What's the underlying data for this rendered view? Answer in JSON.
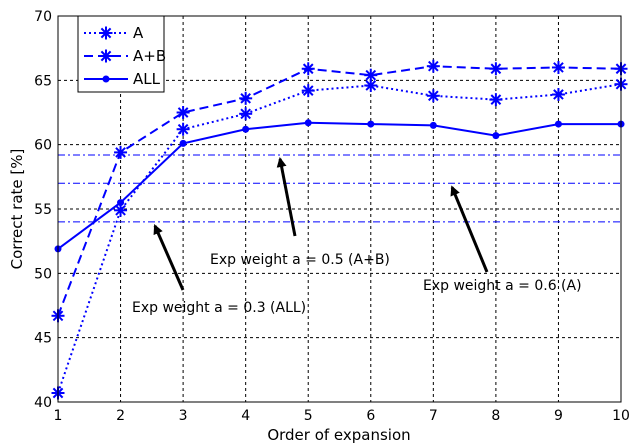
{
  "chart_data": {
    "type": "line",
    "title": "",
    "xlabel": "Order of expansion",
    "ylabel": "Correct rate [%]",
    "xlim": [
      1,
      10
    ],
    "ylim": [
      40,
      70
    ],
    "x_ticks": [
      1,
      2,
      3,
      4,
      5,
      6,
      7,
      8,
      9,
      10
    ],
    "y_ticks": [
      40,
      45,
      50,
      55,
      60,
      65,
      70
    ],
    "grid": true,
    "legend_position": "top-left",
    "x": [
      1,
      2,
      3,
      4,
      5,
      6,
      7,
      8,
      9,
      10
    ],
    "series": [
      {
        "name": "A",
        "style": "dotted",
        "marker": "asterisk",
        "color": "#0000ff",
        "values": [
          40.7,
          54.9,
          61.2,
          62.4,
          64.2,
          64.6,
          63.8,
          63.5,
          63.9,
          64.7
        ]
      },
      {
        "name": "A+B",
        "style": "dashed",
        "marker": "asterisk",
        "color": "#0000ff",
        "values": [
          46.7,
          59.4,
          62.5,
          63.6,
          65.9,
          65.4,
          66.1,
          65.9,
          66.0,
          65.9
        ]
      },
      {
        "name": "ALL",
        "style": "solid",
        "marker": "dot",
        "color": "#0000ff",
        "values": [
          51.9,
          55.5,
          60.1,
          61.2,
          61.7,
          61.6,
          61.5,
          60.7,
          61.6,
          61.6
        ]
      }
    ],
    "reference_lines": [
      {
        "y": 59.2,
        "style": "dashdot",
        "color": "#0000ff"
      },
      {
        "y": 57.0,
        "style": "dashdot",
        "color": "#0000ff"
      },
      {
        "y": 54.0,
        "style": "dashdot",
        "color": "#0000ff"
      }
    ],
    "annotations": [
      {
        "text": "Exp weight a = 0.5 (A+B)",
        "arrow_tip": [
          4.55,
          59.2
        ]
      },
      {
        "text": "Exp weight a = 0.3 (ALL)",
        "arrow_tip": [
          2.55,
          54.0
        ]
      },
      {
        "text": "Exp weight a = 0.6 (A)",
        "arrow_tip": [
          7.3,
          57.0
        ]
      }
    ]
  }
}
